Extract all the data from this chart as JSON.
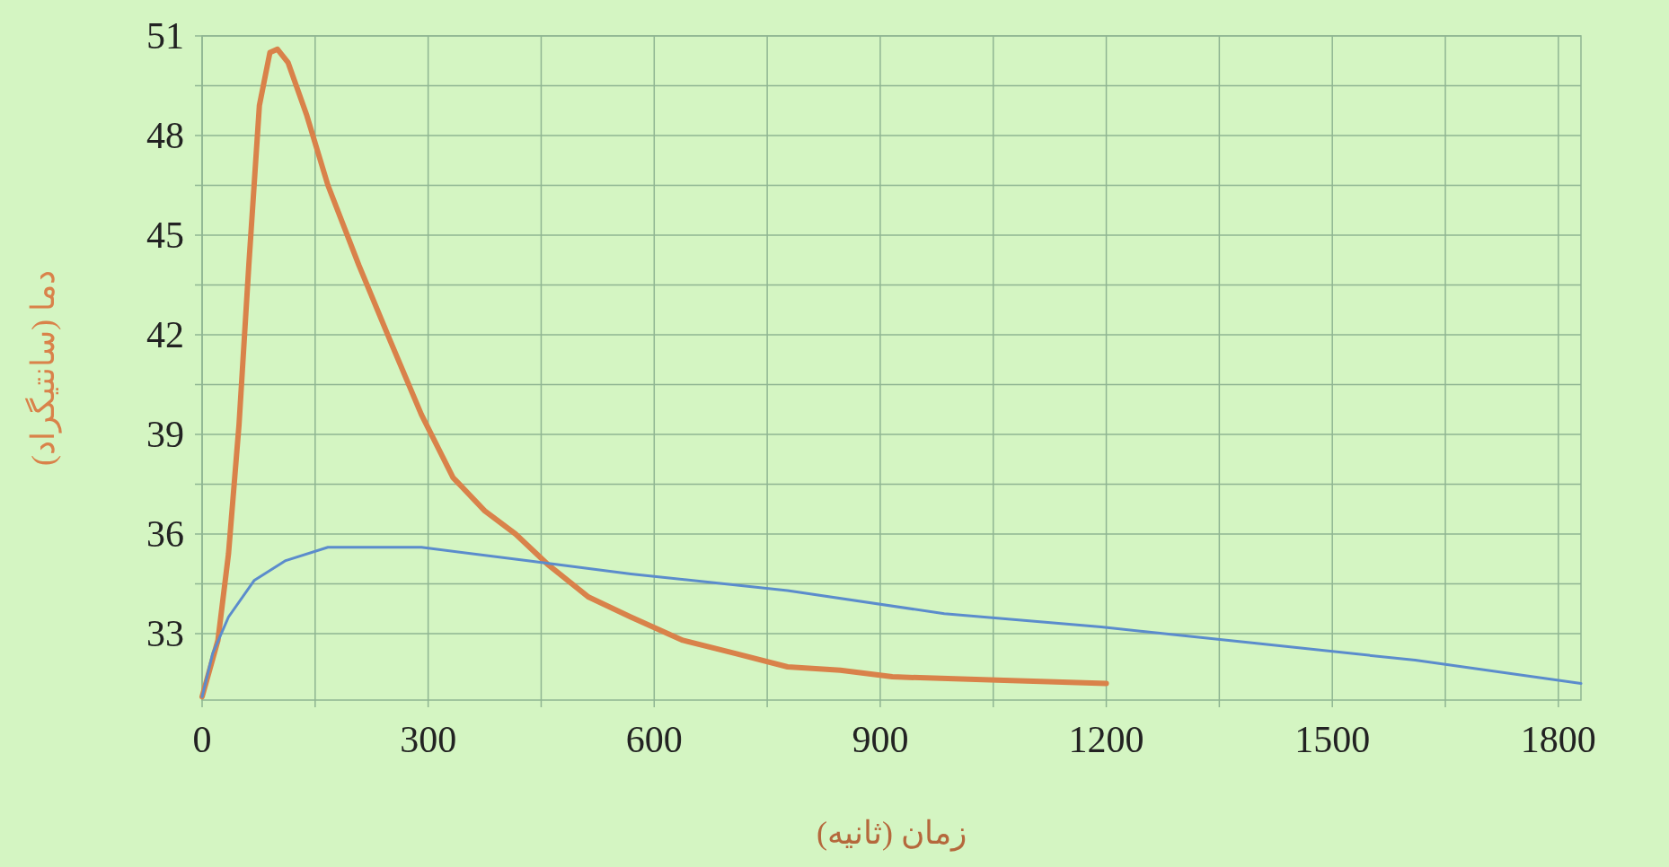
{
  "chart_data": {
    "type": "line",
    "xlabel": "زمان (ثانیه)",
    "ylabel": "دما (سانتیگراد)",
    "xlim": [
      0,
      1830
    ],
    "ylim": [
      31,
      51
    ],
    "xticks": [
      0,
      {
        "value": 150,
        "label": null
      },
      300,
      {
        "value": 450,
        "label": null
      },
      600,
      {
        "value": 750,
        "label": null
      },
      900,
      {
        "value": 1050,
        "label": null
      },
      1200,
      {
        "value": 1350,
        "label": null
      },
      1500,
      {
        "value": 1650,
        "label": null
      },
      1800
    ],
    "yticks": [
      33,
      {
        "value": 34.5,
        "label": null
      },
      36,
      {
        "value": 37.5,
        "label": null
      },
      39,
      {
        "value": 40.5,
        "label": null
      },
      42,
      {
        "value": 43.5,
        "label": null
      },
      45,
      {
        "value": 46.5,
        "label": null
      },
      48,
      {
        "value": 49.5,
        "label": null
      },
      51
    ],
    "grid": true,
    "series": [
      {
        "color": "#d9824a",
        "x": [
          0,
          21,
          35,
          49,
          62,
          76,
          90,
          100,
          114,
          139,
          167,
          208,
          250,
          291,
          333,
          375,
          416,
          458,
          513,
          569,
          638,
          708,
          777,
          847,
          916,
          1055,
          1200
        ],
        "values": [
          31.1,
          32.8,
          35.4,
          39.3,
          44.1,
          48.9,
          50.5,
          50.6,
          50.2,
          48.6,
          46.5,
          44.1,
          41.8,
          39.6,
          37.7,
          36.7,
          36.0,
          35.1,
          34.1,
          33.5,
          32.8,
          32.4,
          32.0,
          31.9,
          31.7,
          31.6,
          31.5
        ]
      },
      {
        "color": "#5b8ccc",
        "x": [
          0,
          14,
          35,
          69,
          111,
          167,
          222,
          291,
          430,
          569,
          777,
          985,
          1193,
          1402,
          1610,
          1830
        ],
        "values": [
          31.1,
          32.4,
          33.5,
          34.6,
          35.2,
          35.6,
          35.6,
          35.6,
          35.2,
          34.8,
          34.3,
          33.6,
          33.2,
          32.7,
          32.2,
          31.5
        ]
      }
    ]
  }
}
